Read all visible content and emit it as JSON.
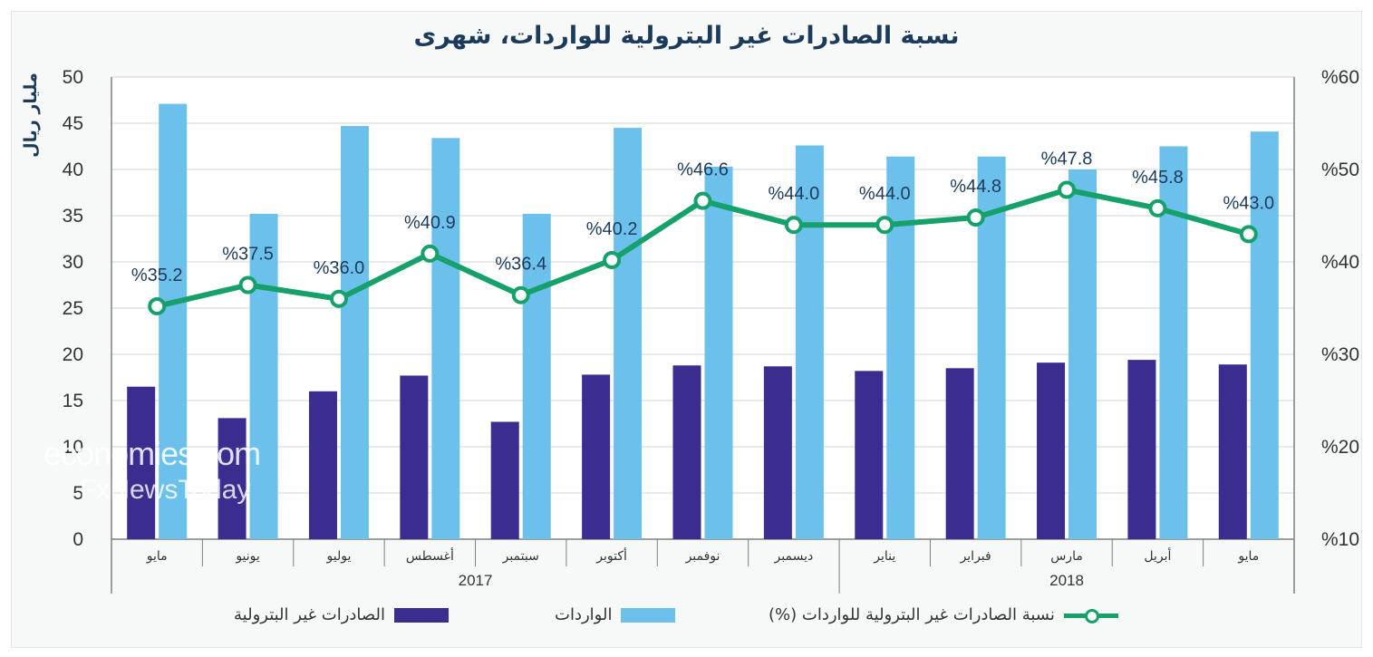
{
  "title": "نسبة الصادرات غير البترولية للواردات، شهرى",
  "y_left_label": "مليار ريال",
  "watermark": {
    "line1": "economies.com",
    "line2": "FxNewsToday"
  },
  "legend": {
    "non_oil_exports": "الصادرات غير البترولية",
    "imports": "الواردات",
    "ratio": "نسبة الصادرات غير البترولية للواردات (%)"
  },
  "colors": {
    "non_oil_exports": "#3a2d8f",
    "imports": "#6cc0ec",
    "ratio": "#16a06a",
    "title": "#1c3b5a"
  },
  "chart_data": {
    "type": "bar",
    "title": "نسبة الصادرات غير البترولية للواردات، شهرى",
    "categories": [
      "مايو",
      "يونيو",
      "يوليو",
      "أغسطس",
      "سبتمبر",
      "أكتوبر",
      "نوفمبر",
      "ديسمبر",
      "يناير",
      "فبراير",
      "مارس",
      "أبريل",
      "مايو"
    ],
    "years": [
      {
        "label": "2017",
        "from": 0,
        "to": 7
      },
      {
        "label": "2018",
        "from": 8,
        "to": 12
      }
    ],
    "series": [
      {
        "name": "الصادرات غير البترولية",
        "axis": "left",
        "kind": "bar",
        "values": [
          16.5,
          13.1,
          16.0,
          17.7,
          12.7,
          17.8,
          18.8,
          18.7,
          18.2,
          18.5,
          19.1,
          19.4,
          18.9
        ]
      },
      {
        "name": "الواردات",
        "axis": "left",
        "kind": "bar",
        "values": [
          47.1,
          35.2,
          44.7,
          43.4,
          35.2,
          44.5,
          40.3,
          42.6,
          41.4,
          41.4,
          40.0,
          42.5,
          44.1
        ]
      },
      {
        "name": "نسبة الصادرات غير البترولية للواردات (%)",
        "axis": "right",
        "kind": "line",
        "values": [
          35.2,
          37.5,
          36.0,
          40.9,
          36.4,
          40.2,
          46.6,
          44.0,
          44.0,
          44.8,
          47.8,
          45.8,
          43.0
        ]
      }
    ],
    "data_labels": [
      "%35.2",
      "%37.5",
      "%36.0",
      "%40.9",
      "%36.4",
      "%40.2",
      "%46.6",
      "%44.0",
      "%44.0",
      "%44.8",
      "%47.8",
      "%45.8",
      "%43.0"
    ],
    "ylabel": "مليار ريال",
    "ylim": [
      0,
      50
    ],
    "y_ticks": [
      "0",
      "5",
      "10",
      "15",
      "20",
      "25",
      "30",
      "35",
      "40",
      "45",
      "50"
    ],
    "y2lim": [
      10,
      60
    ],
    "y2_ticks": [
      "%10",
      "%20",
      "%30",
      "%40",
      "%50",
      "%60"
    ],
    "grid": true,
    "legend_position": "bottom"
  }
}
